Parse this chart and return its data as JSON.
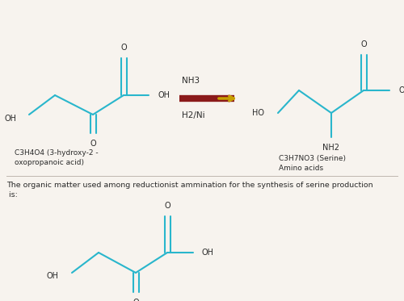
{
  "bg_color": "#f7f3ee",
  "line_color": "#29b6cc",
  "text_color": "#2a2a2a",
  "arrow_body_color": "#8b1a1a",
  "arrow_head_color": "#c8a000",
  "title_text": "The organic matter used among reductionist ammination for the synthesis of serine production\n is:",
  "label_left": "C3H4O4 (3-hydroxy-2 -\noxopropanoic acid)",
  "label_right": "C3H7NO3 (Serine)\nAmino acids",
  "reagent1": "NH3",
  "reagent2": "H2/Ni"
}
